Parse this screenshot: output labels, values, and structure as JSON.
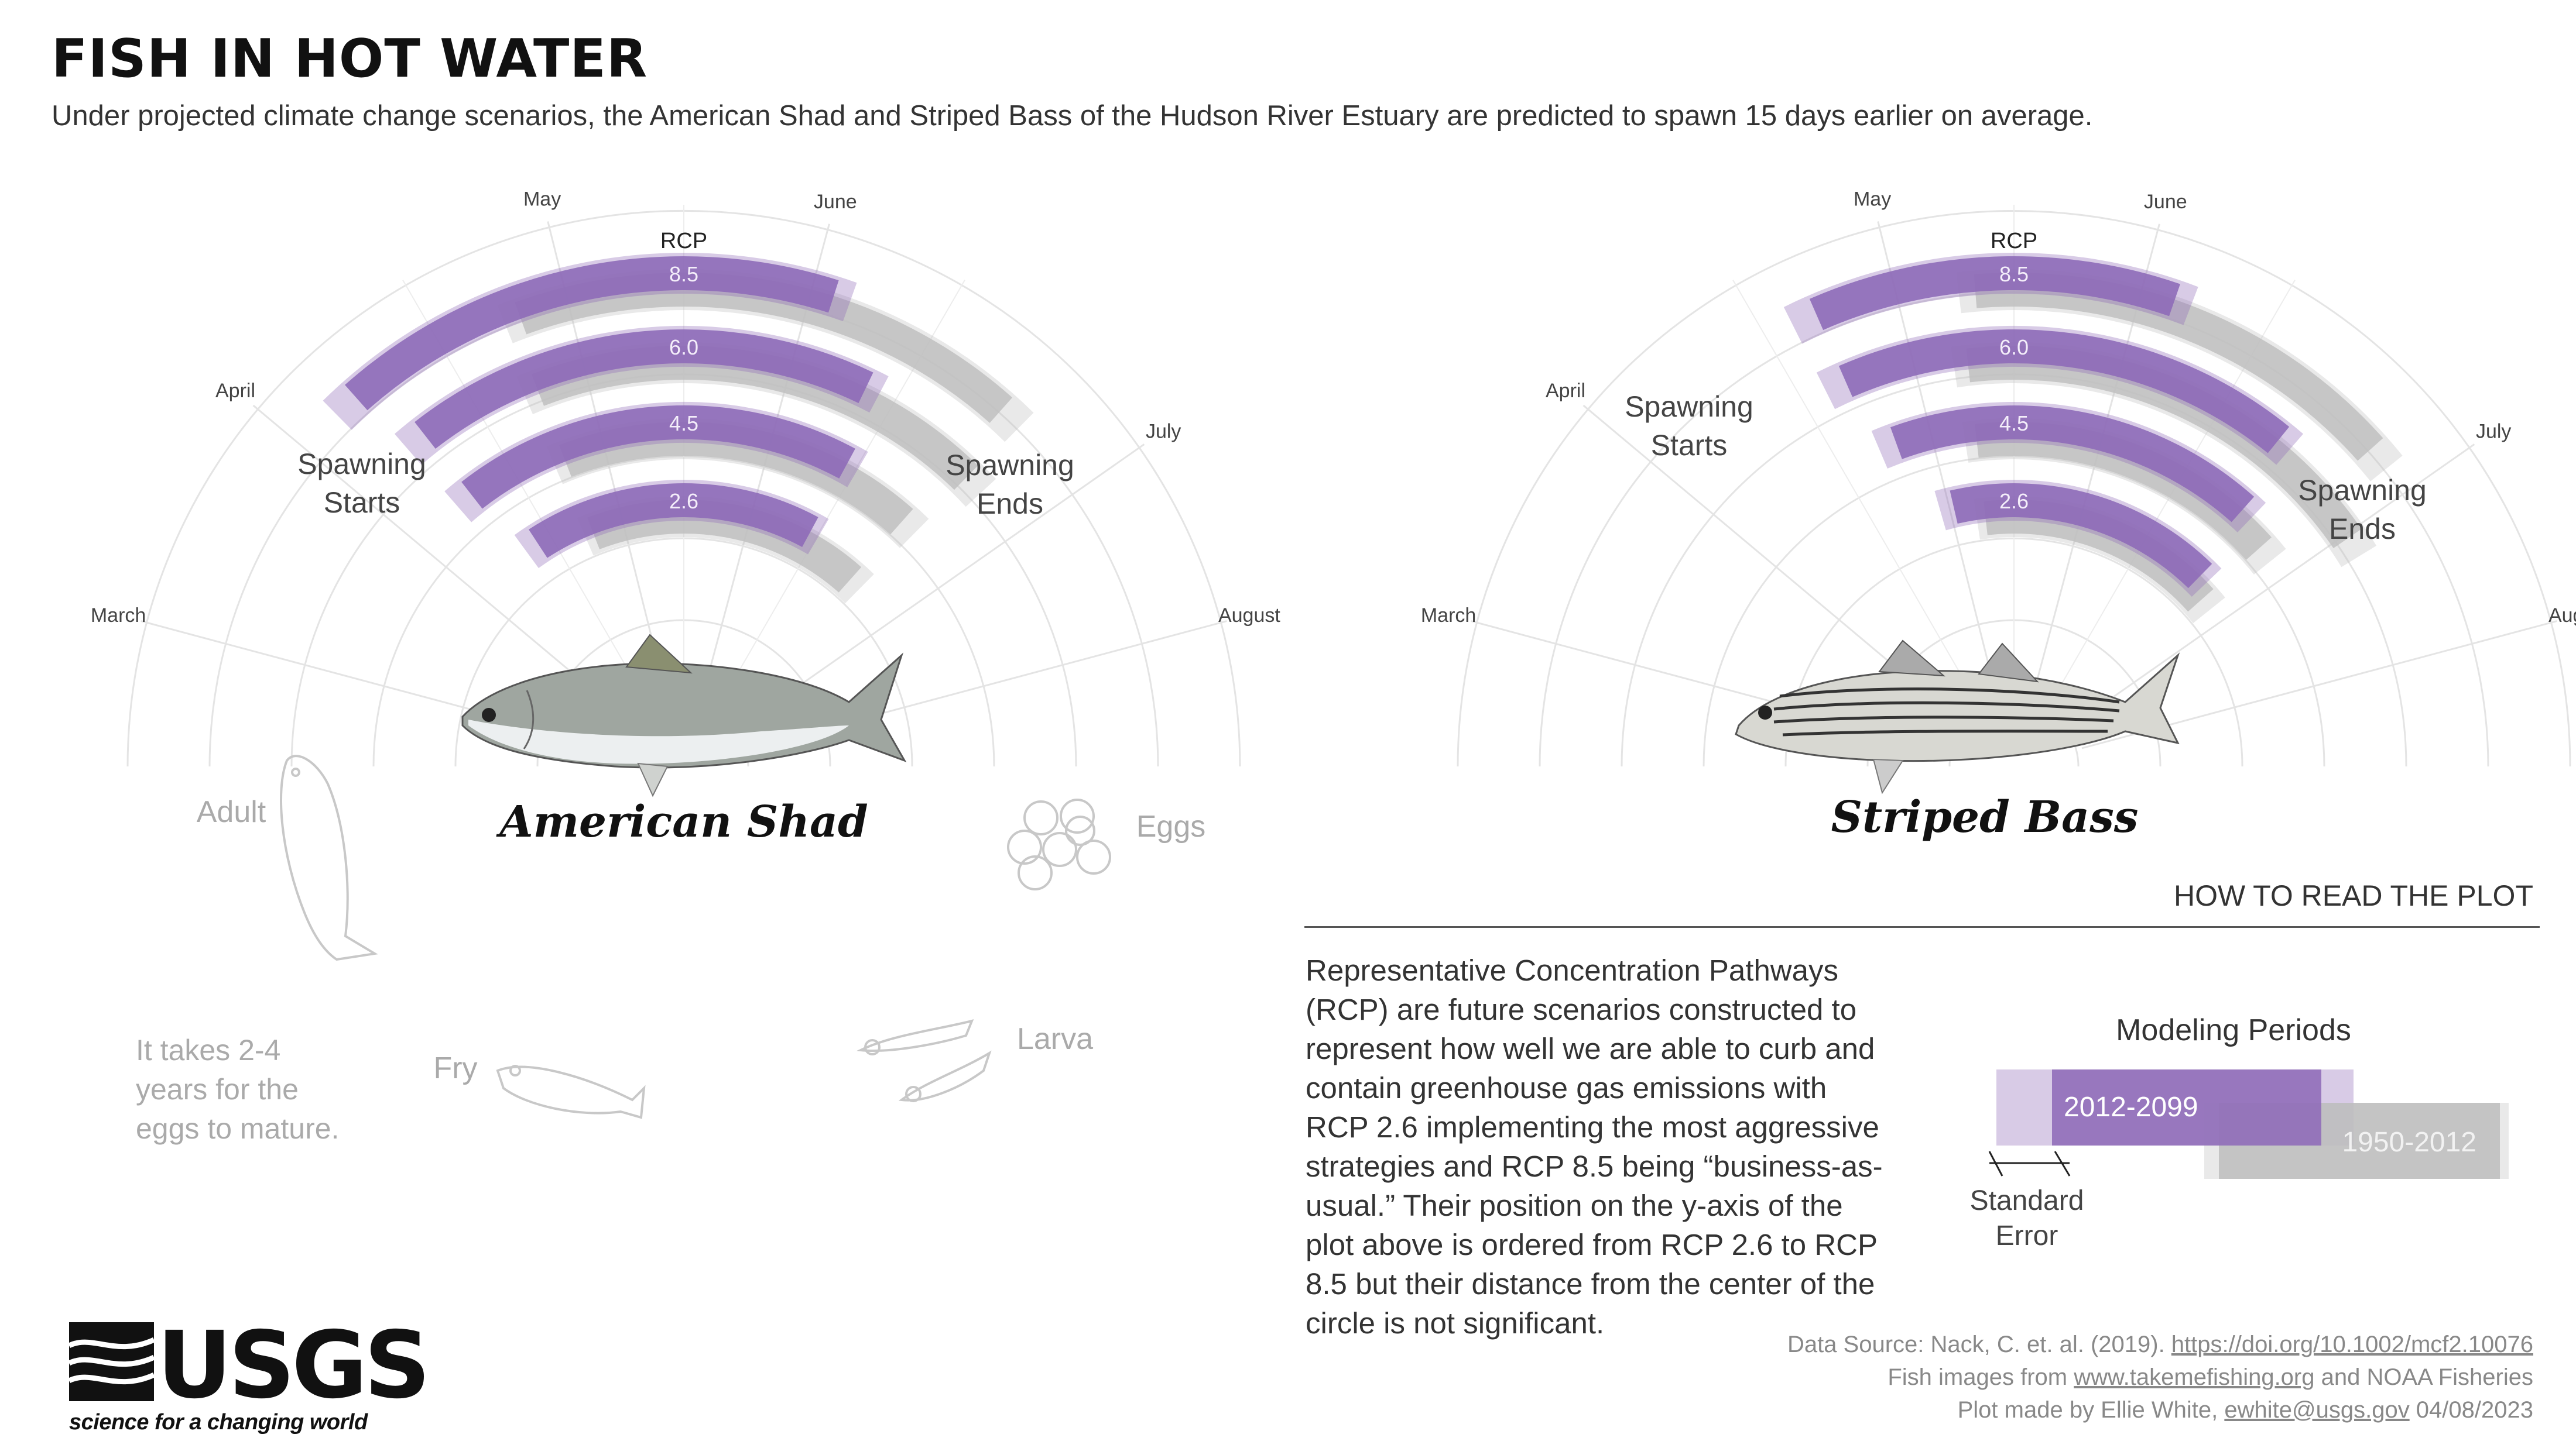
{
  "header": {
    "title": "FISH IN HOT WATER",
    "subtitle": "Under projected climate change scenarios, the American Shad and Striped Bass of the Hudson River Estuary are predicted to spawn 15 days earlier on average."
  },
  "colors": {
    "projected": "#8e6bb8",
    "historical": "#bfbfbf",
    "grid": "#e4e4e4",
    "label": "#777777"
  },
  "chart_data": [
    {
      "type": "radial-range",
      "name": "American Shad",
      "month_labels": [
        "March",
        "April",
        "May",
        "June",
        "July",
        "August"
      ],
      "ring_label": "RCP",
      "annotations": {
        "start": "Spawning\nStarts",
        "end": "Spawning\nEnds"
      },
      "series": [
        {
          "rcp": "8.5",
          "projected": {
            "start": "Apr 7",
            "end": "Jun 2"
          },
          "historical": {
            "start": "Apr 25",
            "end": "Jun 20"
          }
        },
        {
          "rcp": "6.0",
          "projected": {
            "start": "Apr 10",
            "end": "Jun 8"
          },
          "historical": {
            "start": "Apr 24",
            "end": "Jun 22"
          }
        },
        {
          "rcp": "4.5",
          "projected": {
            "start": "Apr 10",
            "end": "Jun 10"
          },
          "historical": {
            "start": "Apr 24",
            "end": "Jun 20"
          }
        },
        {
          "rcp": "2.6",
          "projected": {
            "start": "Apr 14",
            "end": "Jun 10"
          },
          "historical": {
            "start": "Apr 24",
            "end": "Jun 20"
          }
        }
      ]
    },
    {
      "type": "radial-range",
      "name": "Striped Bass",
      "month_labels": [
        "March",
        "April",
        "May",
        "June",
        "July",
        "August"
      ],
      "ring_label": "RCP",
      "annotations": {
        "start": "Spawning\nStarts",
        "end": "Spawning\nEnds"
      },
      "series": [
        {
          "rcp": "8.5",
          "projected": {
            "start": "Apr 22",
            "end": "Jun 3"
          },
          "historical": {
            "start": "May 10",
            "end": "Jun 25"
          }
        },
        {
          "rcp": "6.0",
          "projected": {
            "start": "Apr 22",
            "end": "Jun 18"
          },
          "historical": {
            "start": "May 8",
            "end": "Jul 1"
          }
        },
        {
          "rcp": "4.5",
          "projected": {
            "start": "Apr 25",
            "end": "Jun 20"
          },
          "historical": {
            "start": "May 8",
            "end": "Jun 25"
          }
        },
        {
          "rcp": "2.6",
          "projected": {
            "start": "May 1",
            "end": "Jun 22"
          },
          "historical": {
            "start": "May 8",
            "end": "Jun 25"
          }
        }
      ]
    }
  ],
  "lifecycle": {
    "adult": "Adult",
    "eggs": "Eggs",
    "larva": "Larva",
    "fry": "Fry",
    "note": "It takes 2-4\nyears for the\neggs to mature."
  },
  "howto": {
    "title": "HOW TO READ THE PLOT",
    "rcp_text": "Representative Concentration Pathways (RCP) are future scenarios constructed to represent how well we are able to curb and contain greenhouse gas emissions with RCP 2.6 implementing the most aggressive strategies and RCP 8.5 being  “business-as-usual.” Their position on the y-axis of the plot above is ordered from RCP 2.6 to RCP 8.5 but their distance from the center of the circle is not significant.",
    "legend_title": "Modeling Periods",
    "projected_label": "2012-2099",
    "historical_label": "1950-2012",
    "se_label": "Standard\nError"
  },
  "sources": {
    "line1_prefix": "Data Source: Nack, C. et. al. (2019). ",
    "line1_link": "https://doi.org/10.1002/mcf2.10076",
    "line2_prefix": "Fish images from ",
    "line2_link": "www.takemefishing.org",
    "line2_suffix": " and  NOAA Fisheries",
    "line3_prefix": "Plot made by Ellie White, ",
    "line3_link": "ewhite@usgs.gov",
    "line3_suffix": " 04/08/2023"
  },
  "logo": {
    "word": "USGS",
    "tagline": "science for a changing world"
  }
}
